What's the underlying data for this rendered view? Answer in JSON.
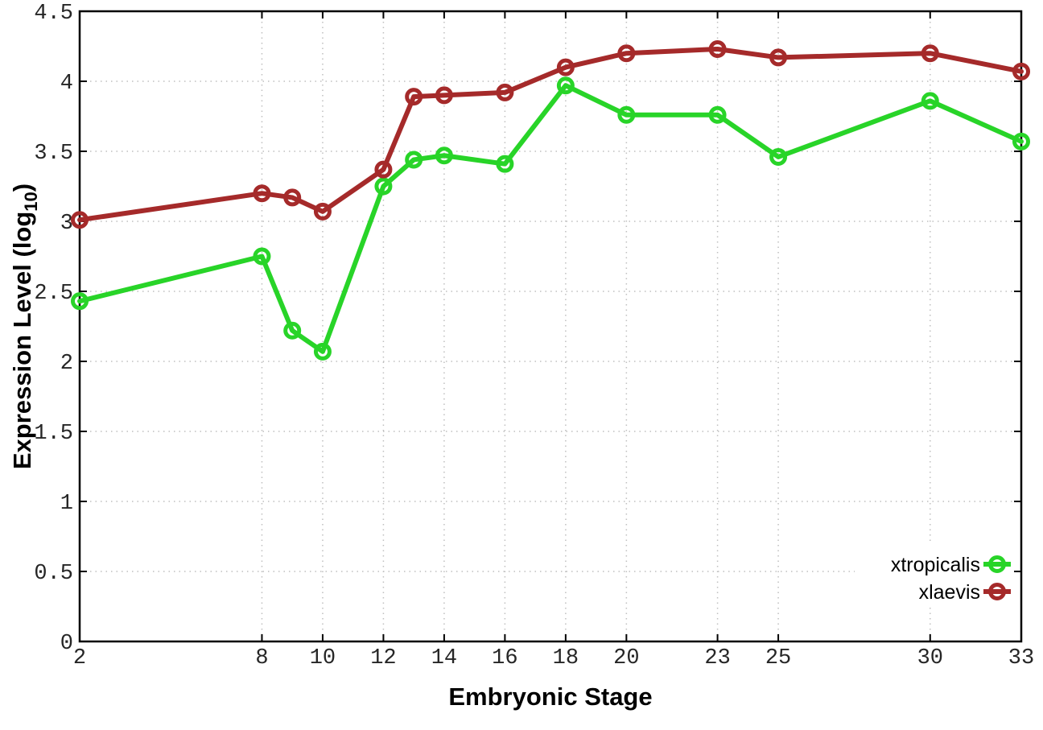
{
  "chart_data": {
    "type": "line",
    "title": "",
    "xlabel": "Embryonic Stage",
    "ylabel": "Expression Level (log10)",
    "ylabel_parts": {
      "main": "Expression Level (log",
      "sub": "10",
      "close": ")"
    },
    "x": [
      2,
      8,
      9,
      10,
      12,
      13,
      14,
      16,
      18,
      20,
      23,
      25,
      30,
      33
    ],
    "series": [
      {
        "name": "xtropicalis",
        "color": "#28d428",
        "values": [
          2.43,
          2.75,
          2.22,
          2.07,
          3.25,
          3.44,
          3.47,
          3.41,
          3.97,
          3.76,
          3.76,
          3.46,
          3.86,
          3.57
        ]
      },
      {
        "name": "xlaevis",
        "color": "#a52a2a",
        "values": [
          3.01,
          3.2,
          3.17,
          3.07,
          3.37,
          3.89,
          3.9,
          3.92,
          4.1,
          4.2,
          4.23,
          4.17,
          4.2,
          4.07
        ]
      }
    ],
    "x_tick_labels": [
      2,
      8,
      10,
      12,
      14,
      16,
      18,
      20,
      23,
      25,
      30,
      33
    ],
    "y_ticks": [
      0,
      0.5,
      1,
      1.5,
      2,
      2.5,
      3,
      3.5,
      4,
      4.5
    ],
    "xlim": [
      2,
      33
    ],
    "ylim": [
      0,
      4.5
    ],
    "grid": true,
    "grid_style": "dotted",
    "legend_position": "inside-bottom-right",
    "legend_entries": [
      "xtropicalis",
      "xlaevis"
    ],
    "marker": "open-circle",
    "colors": {
      "background": "#ffffff",
      "axis": "#000000",
      "grid": "#bfbfbf",
      "tick_label": "#262626",
      "title_text": "#000000"
    }
  }
}
